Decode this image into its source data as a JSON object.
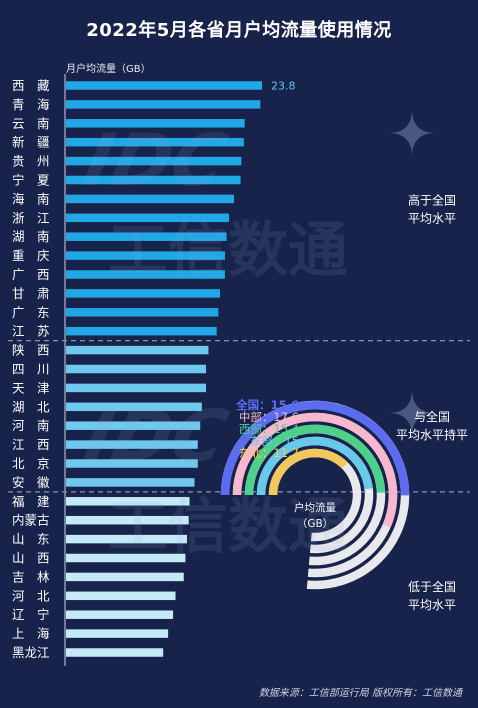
{
  "title": "2022年5月各省月户均流量使用情况",
  "unit_label": "月户均流量（GB）",
  "source": "数据来源：工信部运行局  版权所有：工信数通",
  "watermark": "工信数通",
  "watermark_logo": "IDC",
  "colors": {
    "background": "#17234a",
    "above_bar": "#1fa7e6",
    "even_bar": "#6fc8ee",
    "below_bar": "#c4e9f7",
    "divider": "#8a93ad",
    "ring_text_gold": "#f2c75c"
  },
  "chart_data": {
    "type": "bar",
    "orientation": "horizontal",
    "xlim": [
      0,
      25
    ],
    "categories": [
      "西藏",
      "青海",
      "云南",
      "新疆",
      "贵州",
      "宁夏",
      "海南",
      "浙江",
      "湖南",
      "重庆",
      "广西",
      "甘肃",
      "广东",
      "江苏",
      "陕西",
      "四川",
      "天津",
      "湖北",
      "河南",
      "江西",
      "北京",
      "安徽",
      "福建",
      "内蒙古",
      "山东",
      "山西",
      "吉林",
      "河北",
      "辽宁",
      "上海",
      "黑龙江"
    ],
    "values": [
      23.8,
      23.6,
      21.7,
      21.6,
      21.3,
      21.2,
      20.4,
      19.8,
      19.5,
      19.3,
      19.3,
      18.7,
      18.5,
      18.3,
      17.3,
      17.0,
      17.0,
      16.5,
      16.3,
      16.0,
      16.0,
      15.6,
      15.0,
      14.9,
      14.7,
      14.5,
      14.3,
      13.3,
      13.0,
      12.4,
      11.8
    ],
    "data_labels": [
      {
        "category": "西藏",
        "text": "23.8"
      }
    ],
    "groups": [
      {
        "label": "高于全国平均水平",
        "start": 0,
        "end": 13
      },
      {
        "label": "与全国平均水平持平",
        "start": 14,
        "end": 21
      },
      {
        "label": "低于全国平均水平",
        "start": 22,
        "end": 30
      }
    ],
    "rings": {
      "type": "radial-bar",
      "max": 23.8,
      "center_label": "户均流量（GB）",
      "items": [
        {
          "name": "全国",
          "value": 15.6,
          "color": "#5b6cf0"
        },
        {
          "name": "中部",
          "value": 17.6,
          "color": "#f7b8cf"
        },
        {
          "name": "西部",
          "value": 15.4,
          "color": "#4fd08a"
        },
        {
          "name": "东部",
          "value": 15,
          "color": "#69c9ea"
        },
        {
          "name": "东北",
          "value": 11.7,
          "color": "#f2c75c"
        }
      ]
    }
  }
}
